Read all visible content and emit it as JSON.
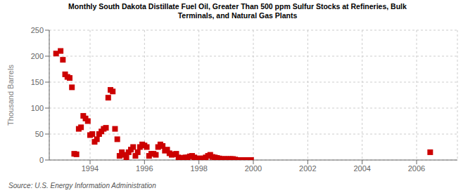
{
  "chart_data": {
    "type": "scatter",
    "title": "Monthly South Dakota Distillate Fuel Oil, Greater Than 500 ppm Sulfur Stocks at Refineries, Bulk\nTerminals, and Natural Gas Plants",
    "ylabel": "Thousand Barrels",
    "annotations": [
      "Source: U.S. Energy Information Administration"
    ],
    "color": "#cc0000",
    "marker": "square",
    "grid": true,
    "xlim": [
      1992.5,
      2007.5
    ],
    "ylim": [
      0,
      250
    ],
    "xticks": [
      1994,
      1996,
      1998,
      2000,
      2002,
      2004,
      2006
    ],
    "yticks": [
      0,
      50,
      100,
      150,
      200,
      250
    ],
    "x": [
      1992.75,
      1992.917,
      1993.0,
      1993.083,
      1993.167,
      1993.25,
      1993.333,
      1993.417,
      1993.5,
      1993.583,
      1993.667,
      1993.75,
      1993.833,
      1993.917,
      1994.0,
      1994.083,
      1994.167,
      1994.25,
      1994.333,
      1994.417,
      1994.5,
      1994.583,
      1994.667,
      1994.75,
      1994.833,
      1994.917,
      1995.0,
      1995.083,
      1995.167,
      1995.25,
      1995.333,
      1995.417,
      1995.5,
      1995.583,
      1995.667,
      1995.75,
      1995.833,
      1995.917,
      1996.0,
      1996.083,
      1996.167,
      1996.25,
      1996.333,
      1996.417,
      1996.5,
      1996.583,
      1996.667,
      1996.75,
      1996.833,
      1996.917,
      1997.0,
      1997.083,
      1997.167,
      1997.25,
      1997.333,
      1997.417,
      1997.5,
      1997.583,
      1997.667,
      1997.75,
      1997.833,
      1997.917,
      1998.0,
      1998.083,
      1998.167,
      1998.25,
      1998.333,
      1998.417,
      1998.5,
      1998.583,
      1998.667,
      1998.75,
      1998.833,
      1998.917,
      1999.0,
      1999.083,
      1999.167,
      1999.25,
      1999.333,
      1999.5,
      1999.667,
      1999.75,
      1999.833,
      1999.917,
      2006.5
    ],
    "values": [
      205,
      210,
      193,
      165,
      160,
      158,
      140,
      12,
      11,
      60,
      63,
      85,
      80,
      75,
      48,
      50,
      35,
      40,
      50,
      55,
      60,
      62,
      120,
      135,
      132,
      60,
      40,
      8,
      15,
      10,
      5,
      15,
      20,
      25,
      8,
      15,
      25,
      30,
      28,
      25,
      8,
      12,
      12,
      10,
      25,
      30,
      27,
      18,
      20,
      13,
      10,
      11,
      12,
      5,
      4,
      3,
      5,
      5,
      7,
      8,
      5,
      3,
      3,
      3,
      3,
      5,
      8,
      10,
      6,
      5,
      4,
      3,
      2,
      2,
      2,
      2,
      2,
      2,
      1,
      0,
      0,
      0,
      0,
      0,
      15
    ]
  }
}
